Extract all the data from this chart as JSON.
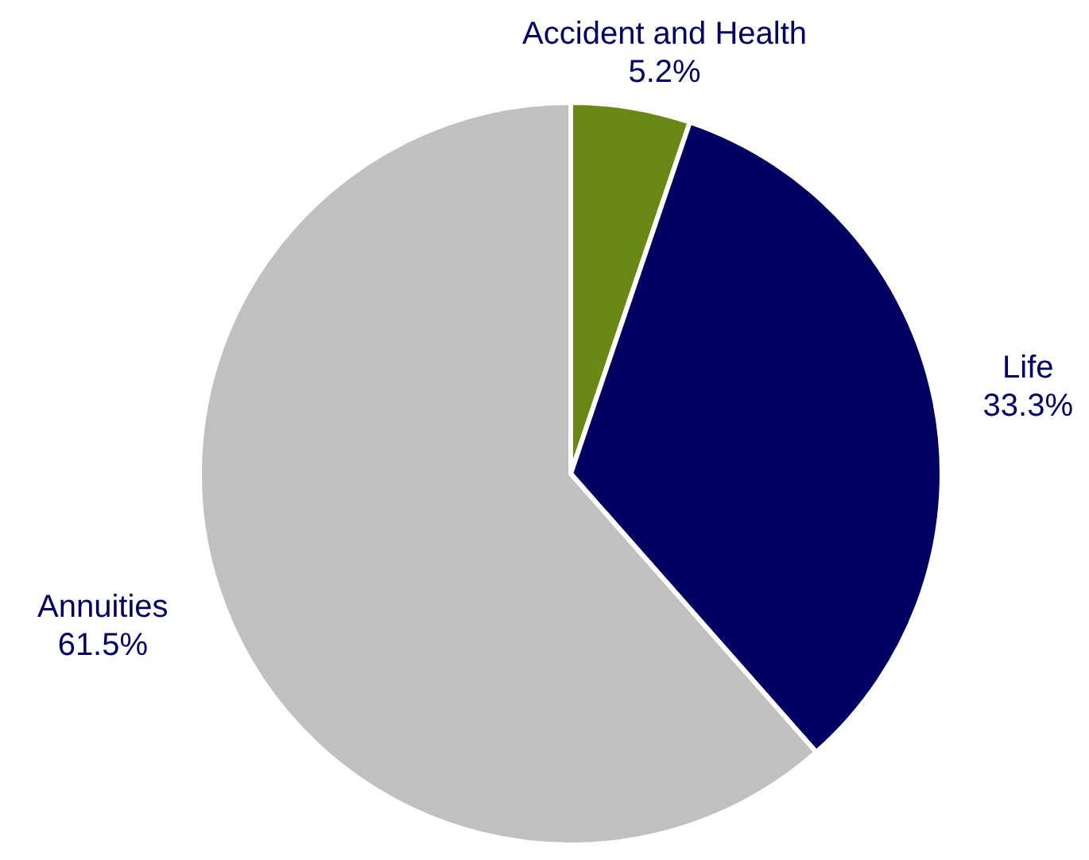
{
  "chart_data": {
    "type": "pie",
    "categories": [
      "Accident and Health",
      "Life",
      "Annuities"
    ],
    "values": [
      5.2,
      33.3,
      61.5
    ],
    "colors": [
      "#6b8715",
      "#000060",
      "#c0c0c0"
    ],
    "value_labels": [
      "5.2%",
      "33.3%",
      "61.5%"
    ],
    "legend": false
  }
}
